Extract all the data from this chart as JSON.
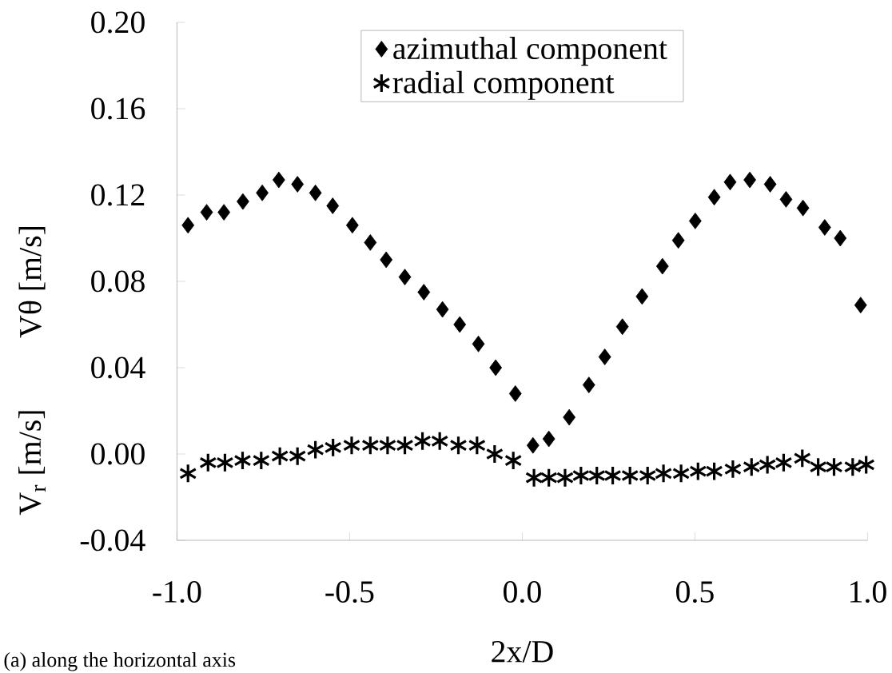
{
  "chart_data": {
    "type": "scatter",
    "xlabel": "2x/D",
    "ylabel": "Vθ [m/s]",
    "annotations": [
      "V$_{r}$ [m/s]",
      "(a) along the horizontal axis"
    ],
    "xlim": [
      -1.0,
      1.0
    ],
    "ylim": [
      -0.04,
      0.2
    ],
    "xticks": [
      {
        "value": -1.0,
        "label": "-1.0"
      },
      {
        "value": -0.5,
        "label": "-0.5"
      },
      {
        "value": 0,
        "label": "0.0"
      },
      {
        "value": 0.5,
        "label": "0.5"
      },
      {
        "value": 1.0,
        "label": "1.0"
      }
    ],
    "yticks": [
      {
        "value": -0.04,
        "label": "-0.04"
      },
      {
        "value": 0,
        "label": "0.00"
      },
      {
        "value": 0.04,
        "label": "0.04"
      },
      {
        "value": 0.08,
        "label": "0.08"
      },
      {
        "value": 0.12,
        "label": "0.12"
      },
      {
        "value": 0.16,
        "label": "0.16"
      },
      {
        "value": 0.2,
        "label": "0.20"
      }
    ],
    "legend": "top",
    "grid": false,
    "series": [
      {
        "name": "azimuthal component",
        "color": "#000000",
        "marker": "diamond",
        "x": [
          -0.968,
          -0.914,
          -0.864,
          -0.809,
          -0.753,
          -0.705,
          -0.651,
          -0.599,
          -0.549,
          -0.492,
          -0.44,
          -0.394,
          -0.34,
          -0.285,
          -0.231,
          -0.181,
          -0.127,
          -0.077,
          -0.02,
          0.031,
          0.077,
          0.136,
          0.193,
          0.239,
          0.29,
          0.347,
          0.406,
          0.452,
          0.501,
          0.556,
          0.602,
          0.659,
          0.718,
          0.764,
          0.813,
          0.876,
          0.921,
          0.98
        ],
        "values": [
          0.106,
          0.112,
          0.112,
          0.117,
          0.121,
          0.127,
          0.125,
          0.121,
          0.115,
          0.106,
          0.098,
          0.09,
          0.082,
          0.075,
          0.067,
          0.06,
          0.051,
          0.04,
          0.028,
          0.004,
          0.007,
          0.017,
          0.032,
          0.045,
          0.059,
          0.073,
          0.087,
          0.099,
          0.108,
          0.119,
          0.126,
          0.127,
          0.125,
          0.118,
          0.114,
          0.105,
          0.1,
          0.069
        ]
      },
      {
        "name": "radial component",
        "color": "#000000",
        "marker": "cross",
        "x": [
          -0.968,
          -0.91,
          -0.861,
          -0.81,
          -0.756,
          -0.702,
          -0.651,
          -0.599,
          -0.548,
          -0.494,
          -0.44,
          -0.39,
          -0.34,
          -0.289,
          -0.239,
          -0.185,
          -0.131,
          -0.08,
          -0.026,
          0.034,
          0.077,
          0.124,
          0.17,
          0.216,
          0.262,
          0.312,
          0.363,
          0.409,
          0.46,
          0.509,
          0.556,
          0.61,
          0.664,
          0.71,
          0.757,
          0.811,
          0.857,
          0.903,
          0.957,
          0.996
        ],
        "values": [
          -0.009,
          -0.004,
          -0.004,
          -0.003,
          -0.003,
          -0.001,
          -0.001,
          0.002,
          0.003,
          0.004,
          0.004,
          0.004,
          0.004,
          0.006,
          0.006,
          0.004,
          0.004,
          0.0,
          -0.003,
          -0.011,
          -0.011,
          -0.011,
          -0.01,
          -0.01,
          -0.01,
          -0.01,
          -0.01,
          -0.009,
          -0.009,
          -0.008,
          -0.008,
          -0.007,
          -0.006,
          -0.005,
          -0.004,
          -0.002,
          -0.006,
          -0.006,
          -0.006,
          -0.005
        ]
      }
    ]
  }
}
